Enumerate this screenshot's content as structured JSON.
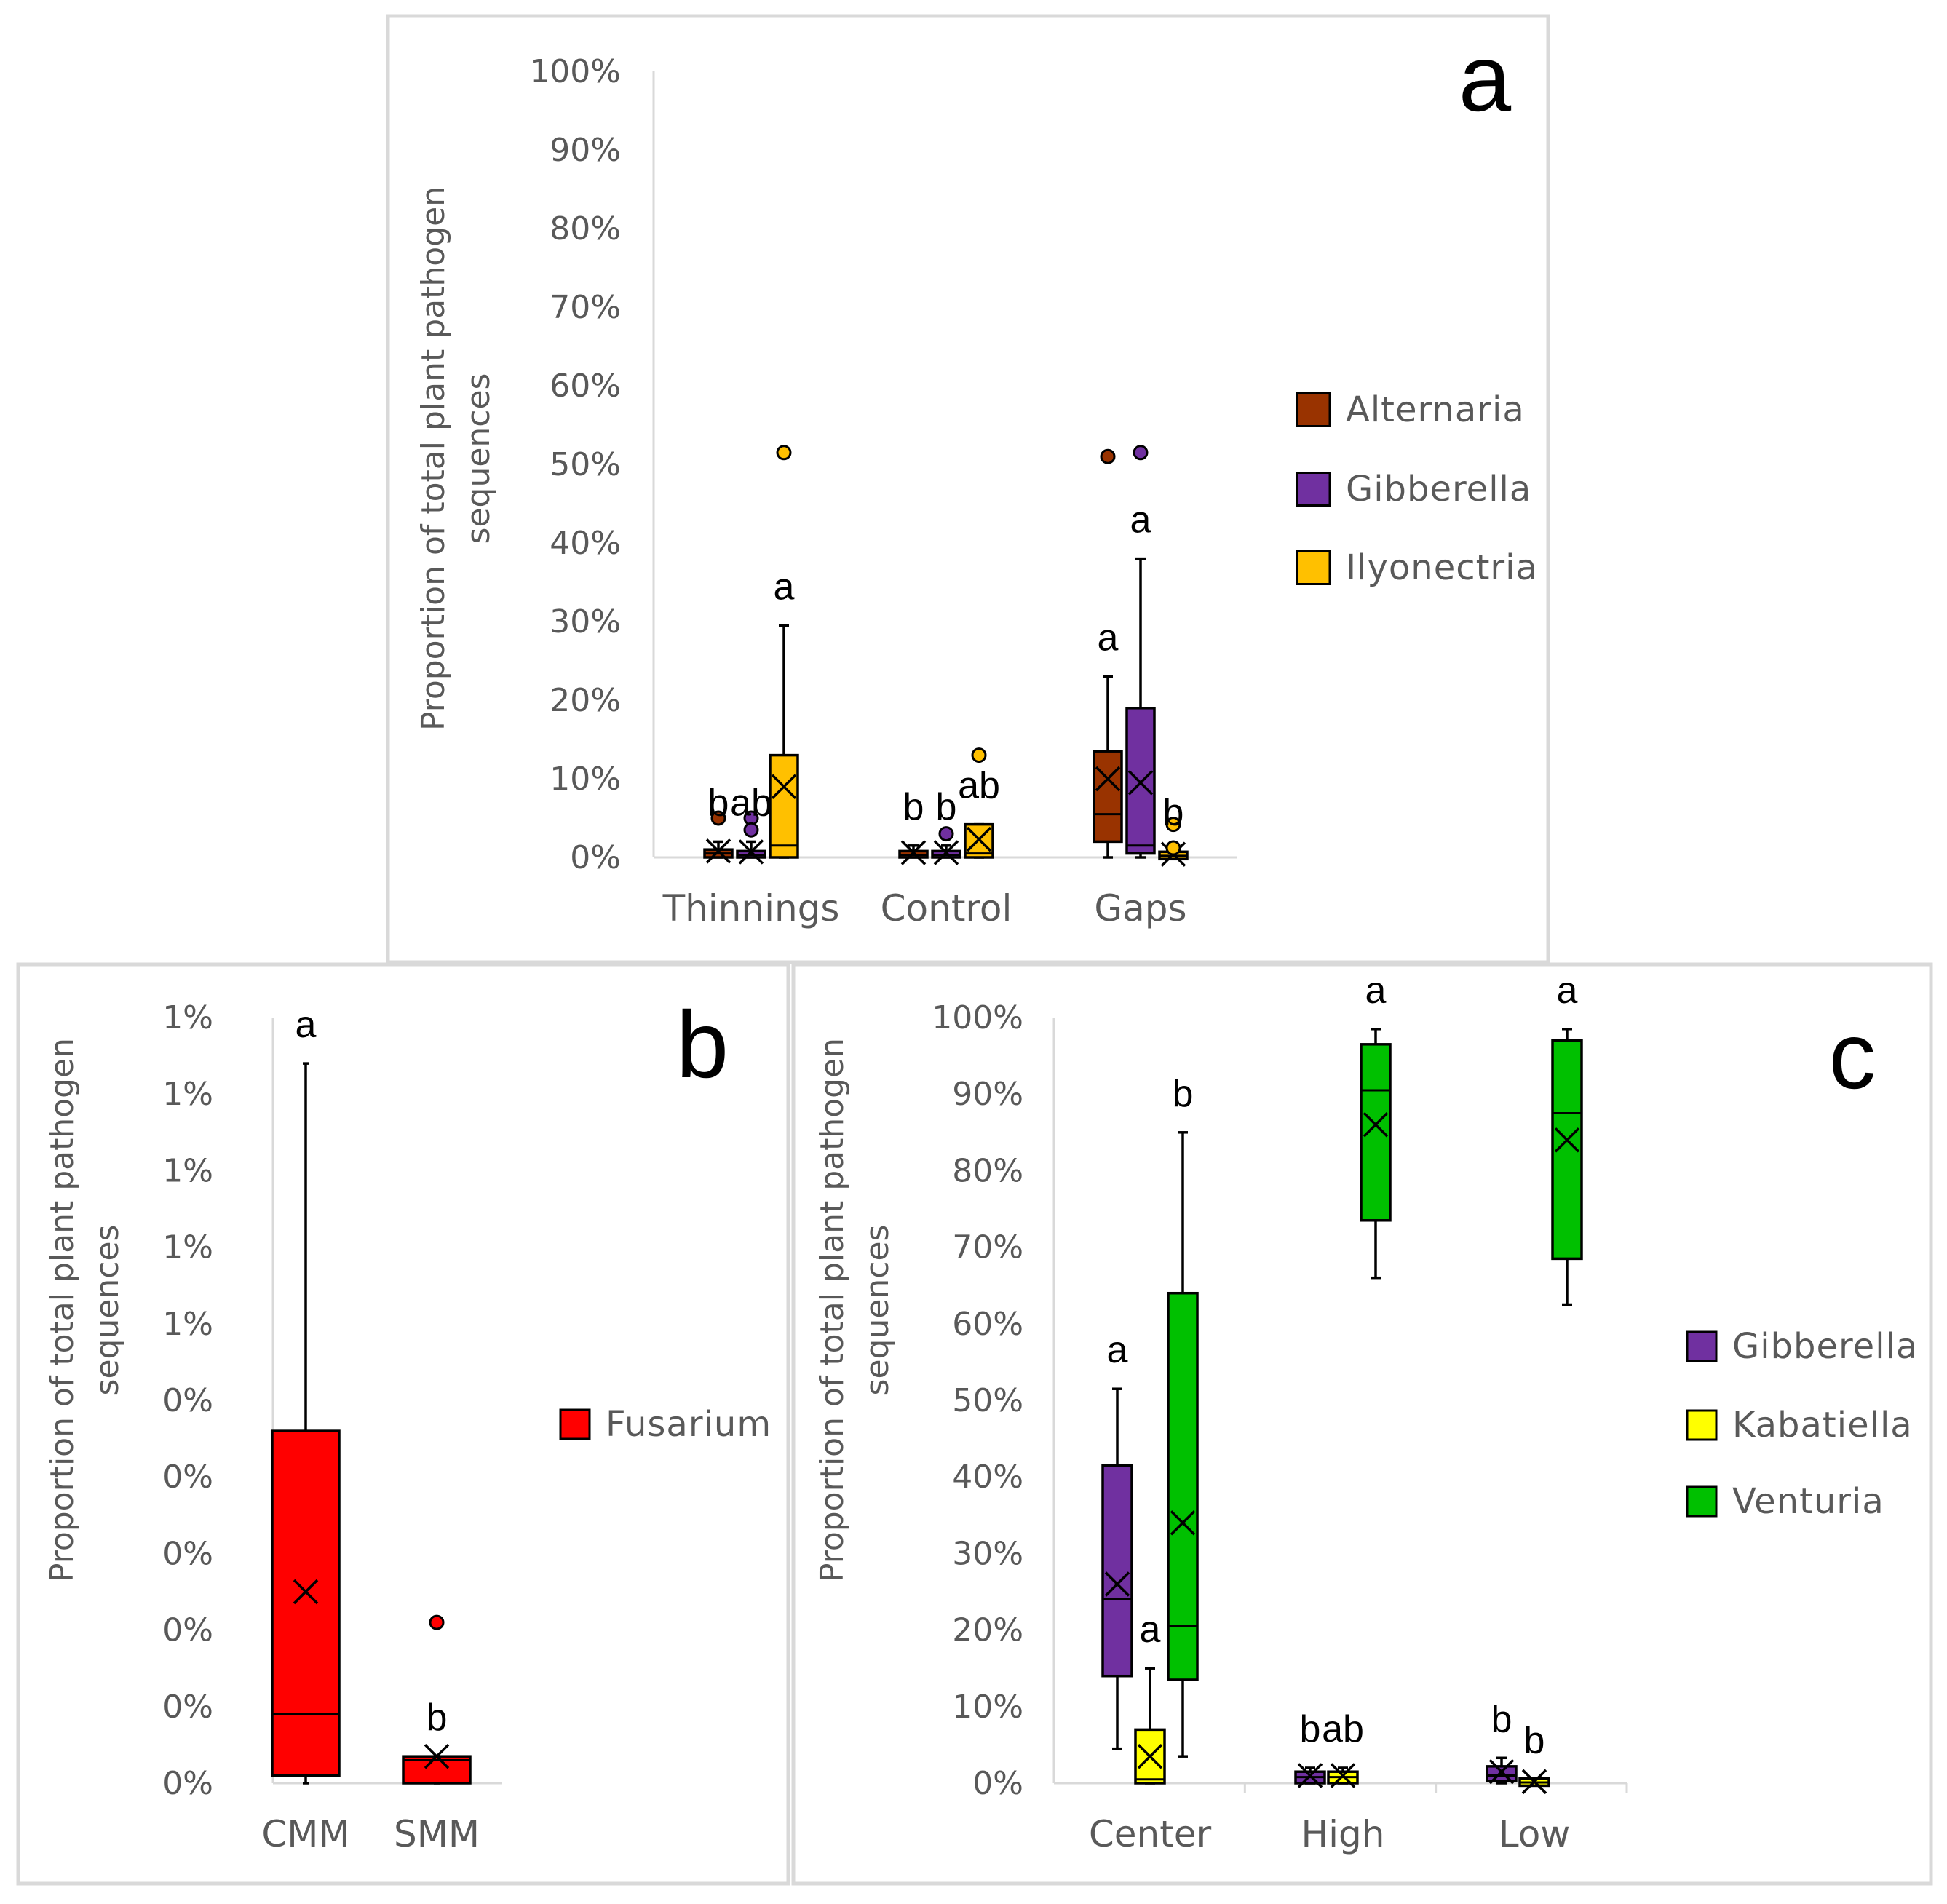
{
  "chart_data": [
    {
      "panel": "a",
      "type": "box",
      "ylabel": [
        "Proportion of total plant pathogen",
        "sequences"
      ],
      "ylim": [
        0,
        100
      ],
      "yticks": [
        "0%",
        "10%",
        "20%",
        "30%",
        "40%",
        "50%",
        "60%",
        "70%",
        "80%",
        "90%",
        "100%"
      ],
      "categories": [
        "Thinnings",
        "Control",
        "Gaps"
      ],
      "series": [
        {
          "name": "Alternaria",
          "color": "#993300"
        },
        {
          "name": "Gibberella",
          "color": "#7030A0"
        },
        {
          "name": "Ilyonectria",
          "color": "#FFC000"
        }
      ],
      "boxes": [
        {
          "cat": 0,
          "series": 0,
          "min": 0,
          "q1": 0,
          "median": 0.5,
          "q3": 1,
          "max": 2,
          "mean": 0.8,
          "outliers": [
            5
          ],
          "sig": "b"
        },
        {
          "cat": 0,
          "series": 1,
          "min": 0,
          "q1": 0,
          "median": 0.3,
          "q3": 0.8,
          "max": 2,
          "mean": 0.7,
          "outliers": [
            5,
            3.5
          ],
          "sig": "ab"
        },
        {
          "cat": 0,
          "series": 2,
          "min": 0,
          "q1": 0,
          "median": 1.5,
          "q3": 13,
          "max": 29.5,
          "mean": 9,
          "outliers": [
            51.5
          ],
          "sig": "a"
        },
        {
          "cat": 1,
          "series": 0,
          "min": 0,
          "q1": 0,
          "median": 0.3,
          "q3": 0.8,
          "max": 1.5,
          "mean": 0.6,
          "outliers": [],
          "sig": "b"
        },
        {
          "cat": 1,
          "series": 1,
          "min": 0,
          "q1": 0,
          "median": 0.3,
          "q3": 0.8,
          "max": 1.5,
          "mean": 0.6,
          "outliers": [
            3
          ],
          "sig": "b"
        },
        {
          "cat": 1,
          "series": 2,
          "min": 0,
          "q1": 0,
          "median": 0.5,
          "q3": 4.2,
          "max": 4.2,
          "mean": 2.3,
          "outliers": [
            13
          ],
          "sig": "ab"
        },
        {
          "cat": 2,
          "series": 0,
          "min": 0,
          "q1": 2,
          "median": 5.5,
          "q3": 13.5,
          "max": 23,
          "mean": 10,
          "outliers": [
            51
          ],
          "sig": "a"
        },
        {
          "cat": 2,
          "series": 1,
          "min": 0,
          "q1": 0.5,
          "median": 1.5,
          "q3": 19,
          "max": 38,
          "mean": 9.5,
          "outliers": [
            51.5
          ],
          "sig": "a"
        },
        {
          "cat": 2,
          "series": 2,
          "min": 0,
          "q1": 0,
          "median": 0.2,
          "q3": 0.5,
          "max": 0.8,
          "mean": 0.4,
          "outliers": [
            4.2,
            1.2
          ],
          "sig": "b"
        }
      ]
    },
    {
      "panel": "b",
      "type": "box",
      "ylabel": [
        "Proportion of total plant pathogen",
        "sequences"
      ],
      "ylim": [
        0,
        10
      ],
      "yticks": [
        "0%",
        "0%",
        "0%",
        "0%",
        "0%",
        "0%",
        "1%",
        "1%",
        "1%",
        "1%",
        "1%"
      ],
      "categories": [
        "CMM",
        "SMM"
      ],
      "series": [
        {
          "name": "Fusarium",
          "color": "#FF0000"
        }
      ],
      "boxes": [
        {
          "cat": 0,
          "series": 0,
          "min": 0,
          "q1": 0.1,
          "median": 0.9,
          "q3": 4.6,
          "max": 9.4,
          "mean": 2.5,
          "outliers": [],
          "sig": "a"
        },
        {
          "cat": 1,
          "series": 0,
          "min": 0,
          "q1": 0,
          "median": 0.3,
          "q3": 0.35,
          "max": 0.35,
          "mean": 0.35,
          "outliers": [
            2.1
          ],
          "sig": "b"
        }
      ]
    },
    {
      "panel": "c",
      "type": "box",
      "ylabel": [
        "Proportion of total plant pathogen",
        "sequences"
      ],
      "ylim": [
        0,
        100
      ],
      "yticks": [
        "0%",
        "10%",
        "20%",
        "30%",
        "40%",
        "50%",
        "60%",
        "70%",
        "80%",
        "90%",
        "100%"
      ],
      "categories": [
        "Center",
        "High",
        "Low"
      ],
      "series": [
        {
          "name": "Gibberella",
          "color": "#7030A0"
        },
        {
          "name": "Kabatiella",
          "color": "#FFFF00"
        },
        {
          "name": "Venturia",
          "color": "#00C000"
        }
      ],
      "boxes": [
        {
          "cat": 0,
          "series": 0,
          "min": 4.5,
          "q1": 14,
          "median": 24,
          "q3": 41.5,
          "max": 51.5,
          "mean": 26,
          "outliers": [],
          "sig": "a"
        },
        {
          "cat": 0,
          "series": 1,
          "min": 0,
          "q1": 0,
          "median": 0.5,
          "q3": 7,
          "max": 15,
          "mean": 3.5,
          "outliers": [],
          "sig": "a"
        },
        {
          "cat": 0,
          "series": 2,
          "min": 3.5,
          "q1": 13.5,
          "median": 20.5,
          "q3": 64,
          "max": 85,
          "mean": 34,
          "outliers": [],
          "sig": "b"
        },
        {
          "cat": 1,
          "series": 0,
          "min": 0,
          "q1": 0,
          "median": 0.8,
          "q3": 1.5,
          "max": 2,
          "mean": 1,
          "outliers": [],
          "sig": "b"
        },
        {
          "cat": 1,
          "series": 1,
          "min": 0,
          "q1": 0,
          "median": 0.8,
          "q3": 1.5,
          "max": 2,
          "mean": 1,
          "outliers": [],
          "sig": "ab"
        },
        {
          "cat": 1,
          "series": 2,
          "min": 66,
          "q1": 73.5,
          "median": 90.5,
          "q3": 96.5,
          "max": 98.5,
          "mean": 86,
          "outliers": [],
          "sig": "a"
        },
        {
          "cat": 2,
          "series": 0,
          "min": 0,
          "q1": 0.3,
          "median": 1,
          "q3": 2.2,
          "max": 3.3,
          "mean": 1.5,
          "outliers": [],
          "sig": "b"
        },
        {
          "cat": 2,
          "series": 1,
          "min": 0,
          "q1": 0,
          "median": 0.1,
          "q3": 0.3,
          "max": 0.5,
          "mean": 0.2,
          "outliers": [],
          "sig": "b"
        },
        {
          "cat": 2,
          "series": 2,
          "min": 62.5,
          "q1": 68.5,
          "median": 87.5,
          "q3": 97,
          "max": 98.5,
          "mean": 84,
          "outliers": [],
          "sig": "a"
        }
      ]
    }
  ]
}
